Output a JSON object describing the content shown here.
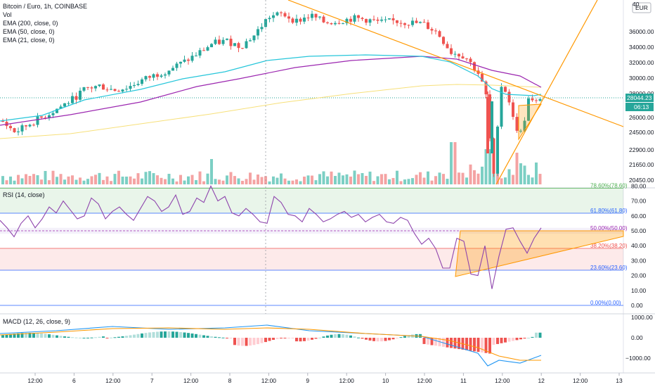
{
  "legend": {
    "title": "Bitcoin / Euro, 1h, COINBASE",
    "vol": "Vol",
    "ema200": "EMA (200, close, 0)",
    "ema50": "EMA (50, close, 0)",
    "ema21": "EMA (21, close, 0)"
  },
  "price_scale": {
    "currency": "EUR",
    "top_tick": "40",
    "ticks": [
      "36000.00",
      "34000.00",
      "32000.00",
      "30000.00",
      "28000.00",
      "26000.00",
      "24500.00",
      "22900.00",
      "21650.00",
      "20450.00"
    ],
    "last_price": "28044.23",
    "countdown": "06:13"
  },
  "rsi": {
    "label": "RSI (14, close)",
    "ticks": [
      "80.00",
      "70.00",
      "60.00",
      "50.00",
      "40.00",
      "30.00",
      "20.00",
      "10.00",
      "0.00"
    ],
    "fib_labels": [
      "78.60%(78.60)",
      "61.80%(61.80)",
      "50.00%(50.00)",
      "38.20%(38.20)",
      "23.60%(23.60)",
      "0.00%(0.00)"
    ]
  },
  "macd": {
    "label": "MACD (12, 26, close, 9)",
    "ticks": [
      "1000.00",
      "0.00",
      "−1000.00"
    ]
  },
  "time_axis": [
    "12:00",
    "6",
    "12:00",
    "7",
    "12:00",
    "8",
    "12:00",
    "9",
    "12:00",
    "10",
    "12:00",
    "11",
    "12:00",
    "12",
    "12:00",
    "13"
  ],
  "colors": {
    "up": "#26a69a",
    "down": "#ef5350",
    "ema200": "#f7e07a",
    "ema50": "#9c27b0",
    "ema21": "#26c6da",
    "trend": "#ff9800",
    "rsi": "#8e44ad",
    "fib_line": "#2962ff",
    "macd": "#2196f3",
    "signal": "#ff9800"
  },
  "chart_data": [
    {
      "type": "candlestick",
      "title": "Bitcoin / Euro, 1h, COINBASE",
      "close_path": [
        [
          0,
          26100
        ],
        [
          20,
          25300
        ],
        [
          40,
          25900
        ],
        [
          60,
          26400
        ],
        [
          80,
          27000
        ],
        [
          100,
          27600
        ],
        [
          120,
          28400
        ],
        [
          140,
          28600
        ],
        [
          160,
          28300
        ],
        [
          180,
          28500
        ],
        [
          200,
          29000
        ],
        [
          220,
          29400
        ],
        [
          240,
          29800
        ],
        [
          260,
          30300
        ],
        [
          280,
          30900
        ],
        [
          300,
          31600
        ],
        [
          320,
          31800
        ],
        [
          340,
          31400
        ],
        [
          360,
          32200
        ],
        [
          380,
          33500
        ],
        [
          400,
          33700
        ],
        [
          420,
          33200
        ],
        [
          440,
          33600
        ],
        [
          460,
          33100
        ],
        [
          480,
          33200
        ],
        [
          500,
          33400
        ],
        [
          520,
          33300
        ],
        [
          540,
          33100
        ],
        [
          560,
          33200
        ],
        [
          580,
          33100
        ],
        [
          600,
          33000
        ],
        [
          620,
          32400
        ],
        [
          640,
          31000
        ],
        [
          660,
          30700
        ],
        [
          680,
          29400
        ],
        [
          690,
          27800
        ],
        [
          700,
          21800
        ],
        [
          710,
          28700
        ],
        [
          720,
          28100
        ],
        [
          730,
          25800
        ],
        [
          740,
          25200
        ],
        [
          750,
          27600
        ],
        [
          760,
          27300
        ],
        [
          770,
          28044
        ]
      ],
      "ylim": [
        20000,
        40000
      ]
    },
    {
      "type": "line",
      "name": "RSI (14, close)",
      "x": [
        0,
        10,
        20,
        30,
        40,
        50,
        60,
        70,
        80,
        90,
        100,
        110,
        120,
        130,
        140,
        150,
        160,
        170,
        180,
        190,
        200,
        210,
        220,
        230,
        240,
        250,
        260,
        270,
        280,
        290,
        300,
        310,
        320,
        330,
        340,
        350,
        360,
        370,
        380,
        390,
        400,
        410,
        420,
        430,
        440,
        450,
        460,
        470,
        480,
        490,
        500,
        510,
        520,
        530,
        540,
        550,
        560,
        570,
        580,
        590,
        600,
        610,
        620,
        630,
        640,
        650,
        660,
        670,
        680,
        690,
        700,
        710,
        720,
        730,
        740,
        750,
        760,
        770
      ],
      "values": [
        57,
        52,
        46,
        55,
        60,
        52,
        58,
        66,
        62,
        70,
        64,
        58,
        60,
        72,
        68,
        58,
        63,
        66,
        61,
        57,
        65,
        73,
        70,
        63,
        66,
        74,
        61,
        63,
        72,
        69,
        80,
        70,
        73,
        62,
        60,
        65,
        61,
        56,
        55,
        73,
        69,
        61,
        60,
        56,
        65,
        61,
        56,
        58,
        61,
        63,
        59,
        61,
        56,
        59,
        61,
        56,
        55,
        59,
        57,
        48,
        41,
        45,
        38,
        25,
        25,
        45,
        43,
        21,
        20,
        40,
        11,
        33,
        51,
        52,
        43,
        35,
        45,
        52
      ],
      "ylim": [
        0,
        85
      ]
    },
    {
      "type": "bar",
      "name": "MACD histogram",
      "ylim": [
        -1500,
        1200
      ]
    }
  ]
}
